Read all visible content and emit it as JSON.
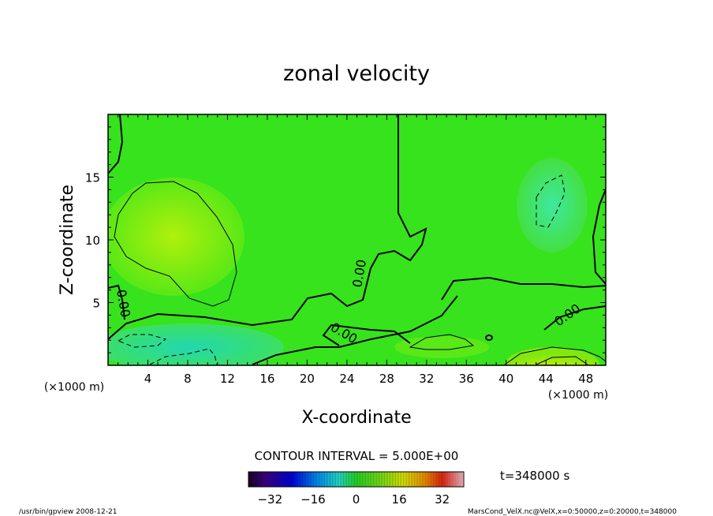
{
  "chart_data": {
    "type": "heatmap",
    "title": "zonal velocity",
    "xlabel": "X-coordinate",
    "ylabel": "Z-coordinate",
    "x_units": "(×1000 m)",
    "y_units": "(×1000 m)",
    "xlim": [
      0,
      50
    ],
    "ylim": [
      0,
      20
    ],
    "x_ticks": [
      4,
      8,
      12,
      16,
      20,
      24,
      28,
      32,
      36,
      40,
      44,
      48
    ],
    "y_ticks": [
      5,
      10,
      15
    ],
    "grid": false,
    "contour_interval_label": "CONTOUR INTERVAL = 5.000E+00",
    "contour_labels": [
      "0.00",
      "0.00",
      "0.00",
      "0.00"
    ],
    "time_label": "t=348000 s",
    "colorbar": {
      "min": -40,
      "max": 40,
      "ticks": [
        -32,
        -16,
        0,
        16,
        32
      ]
    },
    "field_description_values": {
      "background": 1,
      "max_region_center": [
        5.5,
        10.5
      ],
      "max_region_value": 8,
      "min_region_center": [
        8,
        1
      ],
      "min_region_value": -8
    }
  },
  "footer": {
    "left": "/usr/bin/gpview   2008-12-21",
    "right": "MarsCond_VelX.nc@VelX,x=0:50000,z=0:20000,t=348000"
  },
  "colors": {
    "field_base": "#33e21a",
    "positive": "#a8ef10",
    "negative": "#20d6a0",
    "strong_positive": "#e6f000"
  }
}
